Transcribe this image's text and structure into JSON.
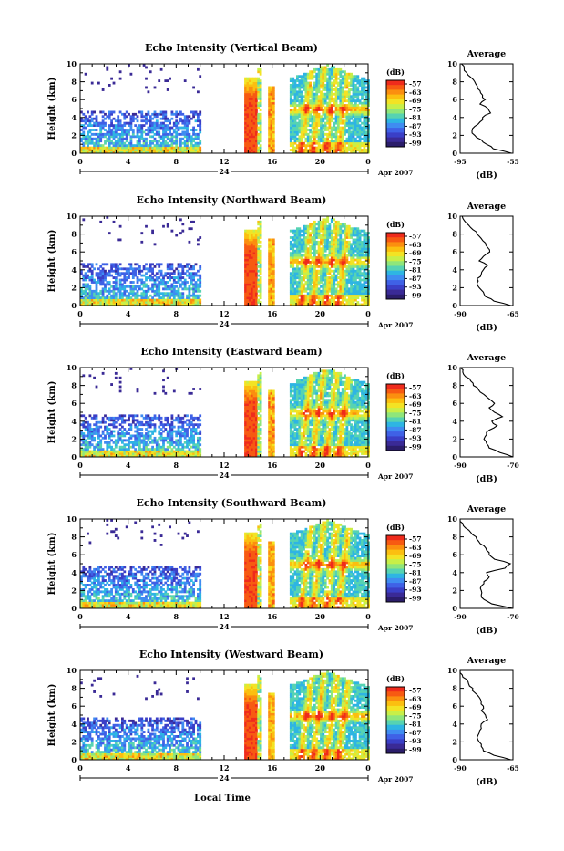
{
  "figure": {
    "xlabel": "Local Time",
    "date_label": "Apr 2007",
    "day_label": "24"
  },
  "colorbar": {
    "unit": "(dB)",
    "ticks": [
      "-57",
      "-63",
      "-69",
      "-75",
      "-81",
      "-87",
      "-93",
      "-99"
    ],
    "colors": [
      "#ef2b1c",
      "#f75a12",
      "#fb8f0f",
      "#fbbf10",
      "#f3e324",
      "#c8ef48",
      "#8fe67a",
      "#56d3b2",
      "#2eb5e3",
      "#3f8cf1",
      "#3f61e6",
      "#3a3fc7",
      "#3a2a96",
      "#2b1d6a"
    ]
  },
  "chart_data": [
    {
      "type": "heatmap",
      "title": "Echo Intensity (Vertical Beam)",
      "ylabel": "Height (km)",
      "xlabel": "",
      "x_ticks": [
        "0",
        "4",
        "8",
        "12",
        "16",
        "20",
        "0"
      ],
      "y_ticks": [
        "0",
        "2",
        "4",
        "6",
        "8",
        "10"
      ],
      "xlim": [
        0,
        24
      ],
      "ylim": [
        0,
        10
      ],
      "profile": {
        "title": "Average",
        "xlabel": "(dB)",
        "x_ticks": [
          "-95",
          "-55"
        ],
        "xlim": [
          -95,
          -55
        ],
        "y_ticks": [
          "0",
          "2",
          "4",
          "6",
          "8",
          "10"
        ],
        "heights": [
          0,
          0.5,
          1,
          1.5,
          2,
          2.5,
          3,
          3.5,
          4,
          4.5,
          5,
          5.5,
          6,
          6.5,
          7,
          7.5,
          8,
          8.5,
          9,
          9.5,
          10
        ],
        "values": [
          -56,
          -70,
          -75,
          -79,
          -84,
          -86,
          -84,
          -80,
          -78,
          -72,
          -74,
          -80,
          -76,
          -78,
          -80,
          -82,
          -84,
          -87,
          -90,
          -92,
          -94
        ]
      }
    },
    {
      "type": "heatmap",
      "title": "Echo Intensity (Northward Beam)",
      "ylabel": "Height (km)",
      "xlabel": "",
      "x_ticks": [
        "0",
        "4",
        "8",
        "12",
        "16",
        "20",
        "0"
      ],
      "y_ticks": [
        "0",
        "2",
        "4",
        "6",
        "8",
        "10"
      ],
      "xlim": [
        0,
        24
      ],
      "ylim": [
        0,
        10
      ],
      "profile": {
        "title": "Average",
        "xlabel": "(dB)",
        "x_ticks": [
          "-90",
          "-65"
        ],
        "xlim": [
          -90,
          -65
        ],
        "y_ticks": [
          "0",
          "2",
          "4",
          "6",
          "8",
          "10"
        ],
        "heights": [
          0,
          0.5,
          1,
          1.5,
          2,
          2.5,
          3,
          3.5,
          4,
          4.5,
          5,
          5.5,
          6,
          6.5,
          7,
          7.5,
          8,
          8.5,
          9,
          9.5,
          10
        ],
        "values": [
          -66,
          -74,
          -78,
          -79,
          -81,
          -82,
          -82,
          -80,
          -79,
          -77,
          -81,
          -79,
          -76,
          -77,
          -78,
          -80,
          -82,
          -84,
          -86,
          -88,
          -89
        ]
      }
    },
    {
      "type": "heatmap",
      "title": "Echo Intensity (Eastward Beam)",
      "ylabel": "Height (km)",
      "xlabel": "",
      "x_ticks": [
        "0",
        "4",
        "8",
        "12",
        "16",
        "20",
        "0"
      ],
      "y_ticks": [
        "0",
        "2",
        "4",
        "6",
        "8",
        "10"
      ],
      "xlim": [
        0,
        24
      ],
      "ylim": [
        0,
        10
      ],
      "profile": {
        "title": "Average",
        "xlabel": "(dB)",
        "x_ticks": [
          "-90",
          "-70"
        ],
        "xlim": [
          -90,
          -70
        ],
        "y_ticks": [
          "0",
          "2",
          "4",
          "6",
          "8",
          "10"
        ],
        "heights": [
          0,
          0.5,
          1,
          1.5,
          2,
          2.5,
          3,
          3.5,
          4,
          4.5,
          5,
          5.5,
          6,
          6.5,
          7,
          7.5,
          8,
          8.5,
          9,
          9.5,
          10
        ],
        "values": [
          -70,
          -75,
          -79,
          -80,
          -81,
          -80,
          -79,
          -76,
          -78,
          -74,
          -77,
          -79,
          -77,
          -79,
          -81,
          -83,
          -85,
          -86,
          -88,
          -89,
          -90
        ]
      }
    },
    {
      "type": "heatmap",
      "title": "Echo Intensity (Southward Beam)",
      "ylabel": "Height (km)",
      "xlabel": "",
      "x_ticks": [
        "0",
        "4",
        "8",
        "12",
        "16",
        "20",
        "0"
      ],
      "y_ticks": [
        "0",
        "2",
        "4",
        "6",
        "8",
        "10"
      ],
      "xlim": [
        0,
        24
      ],
      "ylim": [
        0,
        10
      ],
      "profile": {
        "title": "Average",
        "xlabel": "(dB)",
        "x_ticks": [
          "-90",
          "-70"
        ],
        "xlim": [
          -90,
          -70
        ],
        "y_ticks": [
          "0",
          "2",
          "4",
          "6",
          "8",
          "10"
        ],
        "heights": [
          0,
          0.5,
          1,
          1.5,
          2,
          2.5,
          3,
          3.5,
          4,
          4.5,
          5,
          5.5,
          6,
          6.5,
          7,
          7.5,
          8,
          8.5,
          9,
          9.5,
          10
        ],
        "values": [
          -70,
          -78,
          -81,
          -82,
          -82,
          -82,
          -81,
          -79,
          -80,
          -73,
          -71,
          -77,
          -79,
          -80,
          -81,
          -83,
          -84,
          -86,
          -88,
          -89,
          -90
        ]
      }
    },
    {
      "type": "heatmap",
      "title": "Echo Intensity (Westward Beam)",
      "ylabel": "Height (km)",
      "xlabel": "Local Time",
      "x_ticks": [
        "0",
        "4",
        "8",
        "12",
        "16",
        "20",
        "0"
      ],
      "y_ticks": [
        "0",
        "2",
        "4",
        "6",
        "8",
        "10"
      ],
      "xlim": [
        0,
        24
      ],
      "ylim": [
        0,
        10
      ],
      "profile": {
        "title": "Average",
        "xlabel": "(dB)",
        "x_ticks": [
          "-90",
          "-65"
        ],
        "xlim": [
          -90,
          -65
        ],
        "y_ticks": [
          "0",
          "2",
          "4",
          "6",
          "8",
          "10"
        ],
        "heights": [
          0,
          0.5,
          1,
          1.5,
          2,
          2.5,
          3,
          3.5,
          4,
          4.5,
          5,
          5.5,
          6,
          6.5,
          7,
          7.5,
          8,
          8.5,
          9,
          9.5,
          10
        ],
        "values": [
          -66,
          -74,
          -79,
          -80,
          -81,
          -82,
          -81,
          -80,
          -80,
          -77,
          -78,
          -80,
          -79,
          -80,
          -81,
          -83,
          -84,
          -86,
          -87,
          -89,
          -90
        ]
      }
    }
  ]
}
